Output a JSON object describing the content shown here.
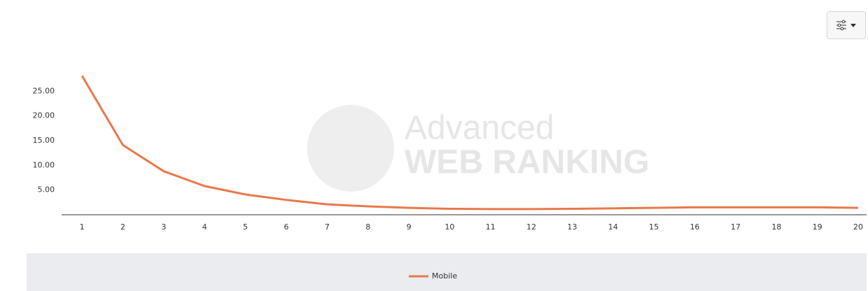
{
  "chart_data": {
    "type": "line",
    "watermark": {
      "line1": "Advanced",
      "line2": "WEB RANKING"
    },
    "categories": [
      "1",
      "2",
      "3",
      "4",
      "5",
      "6",
      "7",
      "8",
      "9",
      "10",
      "11",
      "12",
      "13",
      "14",
      "15",
      "16",
      "17",
      "18",
      "19",
      "20"
    ],
    "series": [
      {
        "name": "Mobile",
        "color": "#e8784b",
        "values": [
          28.1,
          14.1,
          8.8,
          5.8,
          4.1,
          3.0,
          2.1,
          1.7,
          1.4,
          1.2,
          1.15,
          1.15,
          1.2,
          1.3,
          1.4,
          1.5,
          1.5,
          1.5,
          1.5,
          1.4
        ]
      }
    ],
    "ylim": [
      0,
      30
    ],
    "yticks": [
      {
        "value": 5,
        "label": "5.00"
      },
      {
        "value": 10,
        "label": "10.00"
      },
      {
        "value": 15,
        "label": "15.00"
      },
      {
        "value": 20,
        "label": "20.00"
      },
      {
        "value": 25,
        "label": "25.00"
      }
    ],
    "grid": false
  }
}
